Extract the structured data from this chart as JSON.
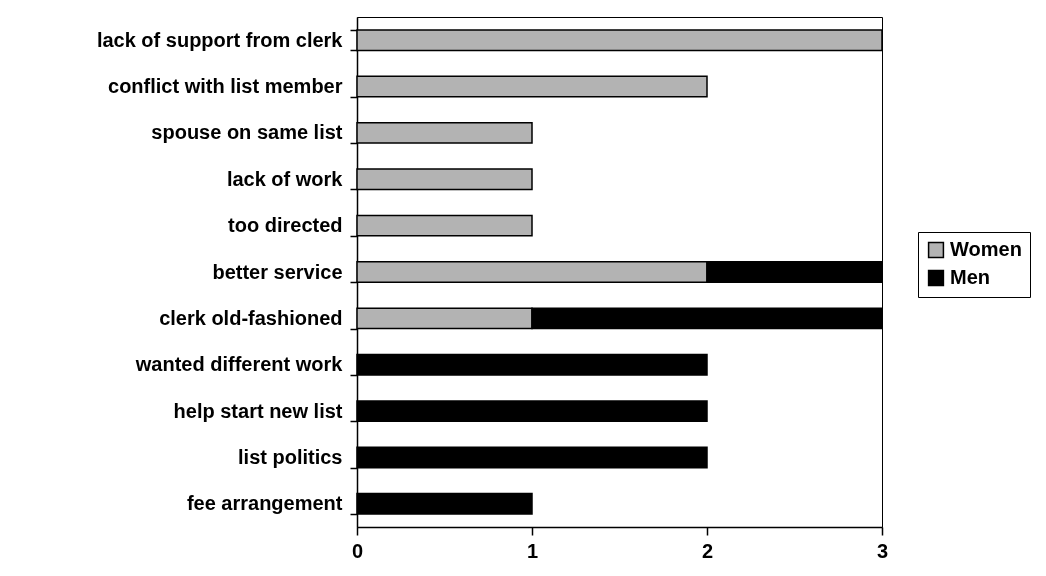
{
  "chart_data": {
    "type": "bar",
    "orientation": "horizontal",
    "stacked": true,
    "categories": [
      "lack of support from clerk",
      "conflict with list member",
      "spouse on same list",
      "lack of work",
      "too directed",
      "better service",
      "clerk old-fashioned",
      "wanted different work",
      "help start new list",
      "list politics",
      "fee arrangement"
    ],
    "series": [
      {
        "name": "Women",
        "color": "#b3b3b3",
        "values": [
          3,
          2,
          1,
          1,
          1,
          2,
          1,
          null,
          null,
          null,
          null
        ]
      },
      {
        "name": "Men",
        "color": "#000000",
        "values": [
          null,
          null,
          null,
          null,
          null,
          1,
          2,
          2,
          2,
          2,
          1
        ]
      }
    ],
    "xlim": [
      0,
      3
    ],
    "xticks": [
      0,
      1,
      2,
      3
    ],
    "grid": false,
    "legend": "right"
  }
}
